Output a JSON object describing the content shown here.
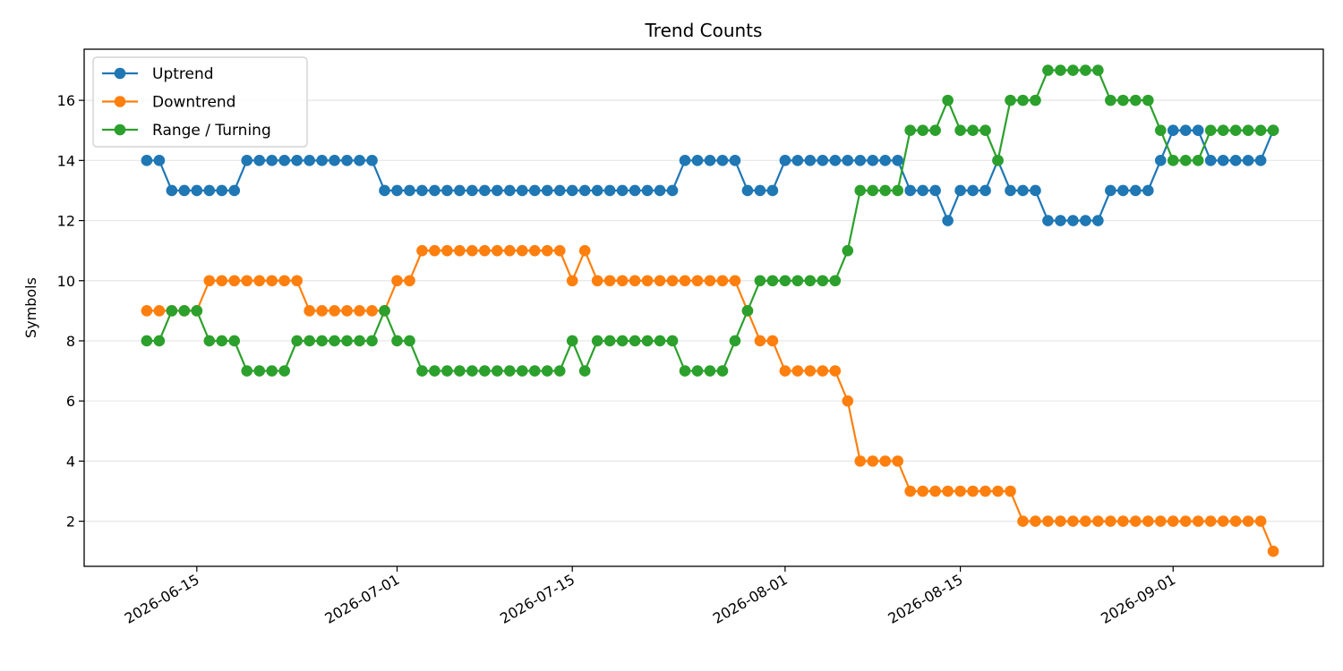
{
  "chart_data": {
    "type": "line",
    "title": "Trend Counts",
    "xlabel": "",
    "ylabel": "Symbols",
    "x_start": "2026-06-11",
    "x_ticks": [
      "2026-06-15",
      "2026-07-01",
      "2026-07-15",
      "2026-08-01",
      "2026-08-15",
      "2026-09-01"
    ],
    "y_ticks": [
      2,
      4,
      6,
      8,
      10,
      12,
      14,
      16
    ],
    "ylim": [
      0.5,
      17.7
    ],
    "xlim": [
      "2026-06-06",
      "2026-09-13"
    ],
    "grid": "horizontal",
    "legend_position": "top-left",
    "series": [
      {
        "name": "Uptrend",
        "color": "#1f77b4",
        "values": [
          14,
          14,
          13,
          13,
          13,
          13,
          13,
          13,
          14,
          14,
          14,
          14,
          14,
          14,
          14,
          14,
          14,
          14,
          14,
          13,
          13,
          13,
          13,
          13,
          13,
          13,
          13,
          13,
          13,
          13,
          13,
          13,
          13,
          13,
          13,
          13,
          13,
          13,
          13,
          13,
          13,
          13,
          13,
          14,
          14,
          14,
          14,
          14,
          13,
          13,
          13,
          14,
          14,
          14,
          14,
          14,
          14,
          14,
          14,
          14,
          14,
          13,
          13,
          13,
          12,
          13,
          13,
          13,
          14,
          13,
          13,
          13,
          12,
          12,
          12,
          12,
          12,
          13,
          13,
          13,
          13,
          14,
          15,
          15,
          15,
          14,
          14,
          14,
          14,
          14,
          15
        ]
      },
      {
        "name": "Downtrend",
        "color": "#ff7f0e",
        "values": [
          9,
          9,
          9,
          9,
          9,
          10,
          10,
          10,
          10,
          10,
          10,
          10,
          10,
          9,
          9,
          9,
          9,
          9,
          9,
          9,
          10,
          10,
          11,
          11,
          11,
          11,
          11,
          11,
          11,
          11,
          11,
          11,
          11,
          11,
          10,
          11,
          10,
          10,
          10,
          10,
          10,
          10,
          10,
          10,
          10,
          10,
          10,
          10,
          9,
          8,
          8,
          7,
          7,
          7,
          7,
          7,
          6,
          4,
          4,
          4,
          4,
          3,
          3,
          3,
          3,
          3,
          3,
          3,
          3,
          3,
          2,
          2,
          2,
          2,
          2,
          2,
          2,
          2,
          2,
          2,
          2,
          2,
          2,
          2,
          2,
          2,
          2,
          2,
          2,
          2,
          1
        ]
      },
      {
        "name": "Range / Turning",
        "color": "#2ca02c",
        "values": [
          8,
          8,
          9,
          9,
          9,
          8,
          8,
          8,
          7,
          7,
          7,
          7,
          8,
          8,
          8,
          8,
          8,
          8,
          8,
          9,
          8,
          8,
          7,
          7,
          7,
          7,
          7,
          7,
          7,
          7,
          7,
          7,
          7,
          7,
          8,
          7,
          8,
          8,
          8,
          8,
          8,
          8,
          8,
          7,
          7,
          7,
          7,
          8,
          9,
          10,
          10,
          10,
          10,
          10,
          10,
          10,
          11,
          13,
          13,
          13,
          13,
          15,
          15,
          15,
          16,
          15,
          15,
          15,
          14,
          16,
          16,
          16,
          17,
          17,
          17,
          17,
          17,
          16,
          16,
          16,
          16,
          15,
          14,
          14,
          14,
          15,
          15,
          15,
          15,
          15,
          15
        ]
      }
    ]
  }
}
